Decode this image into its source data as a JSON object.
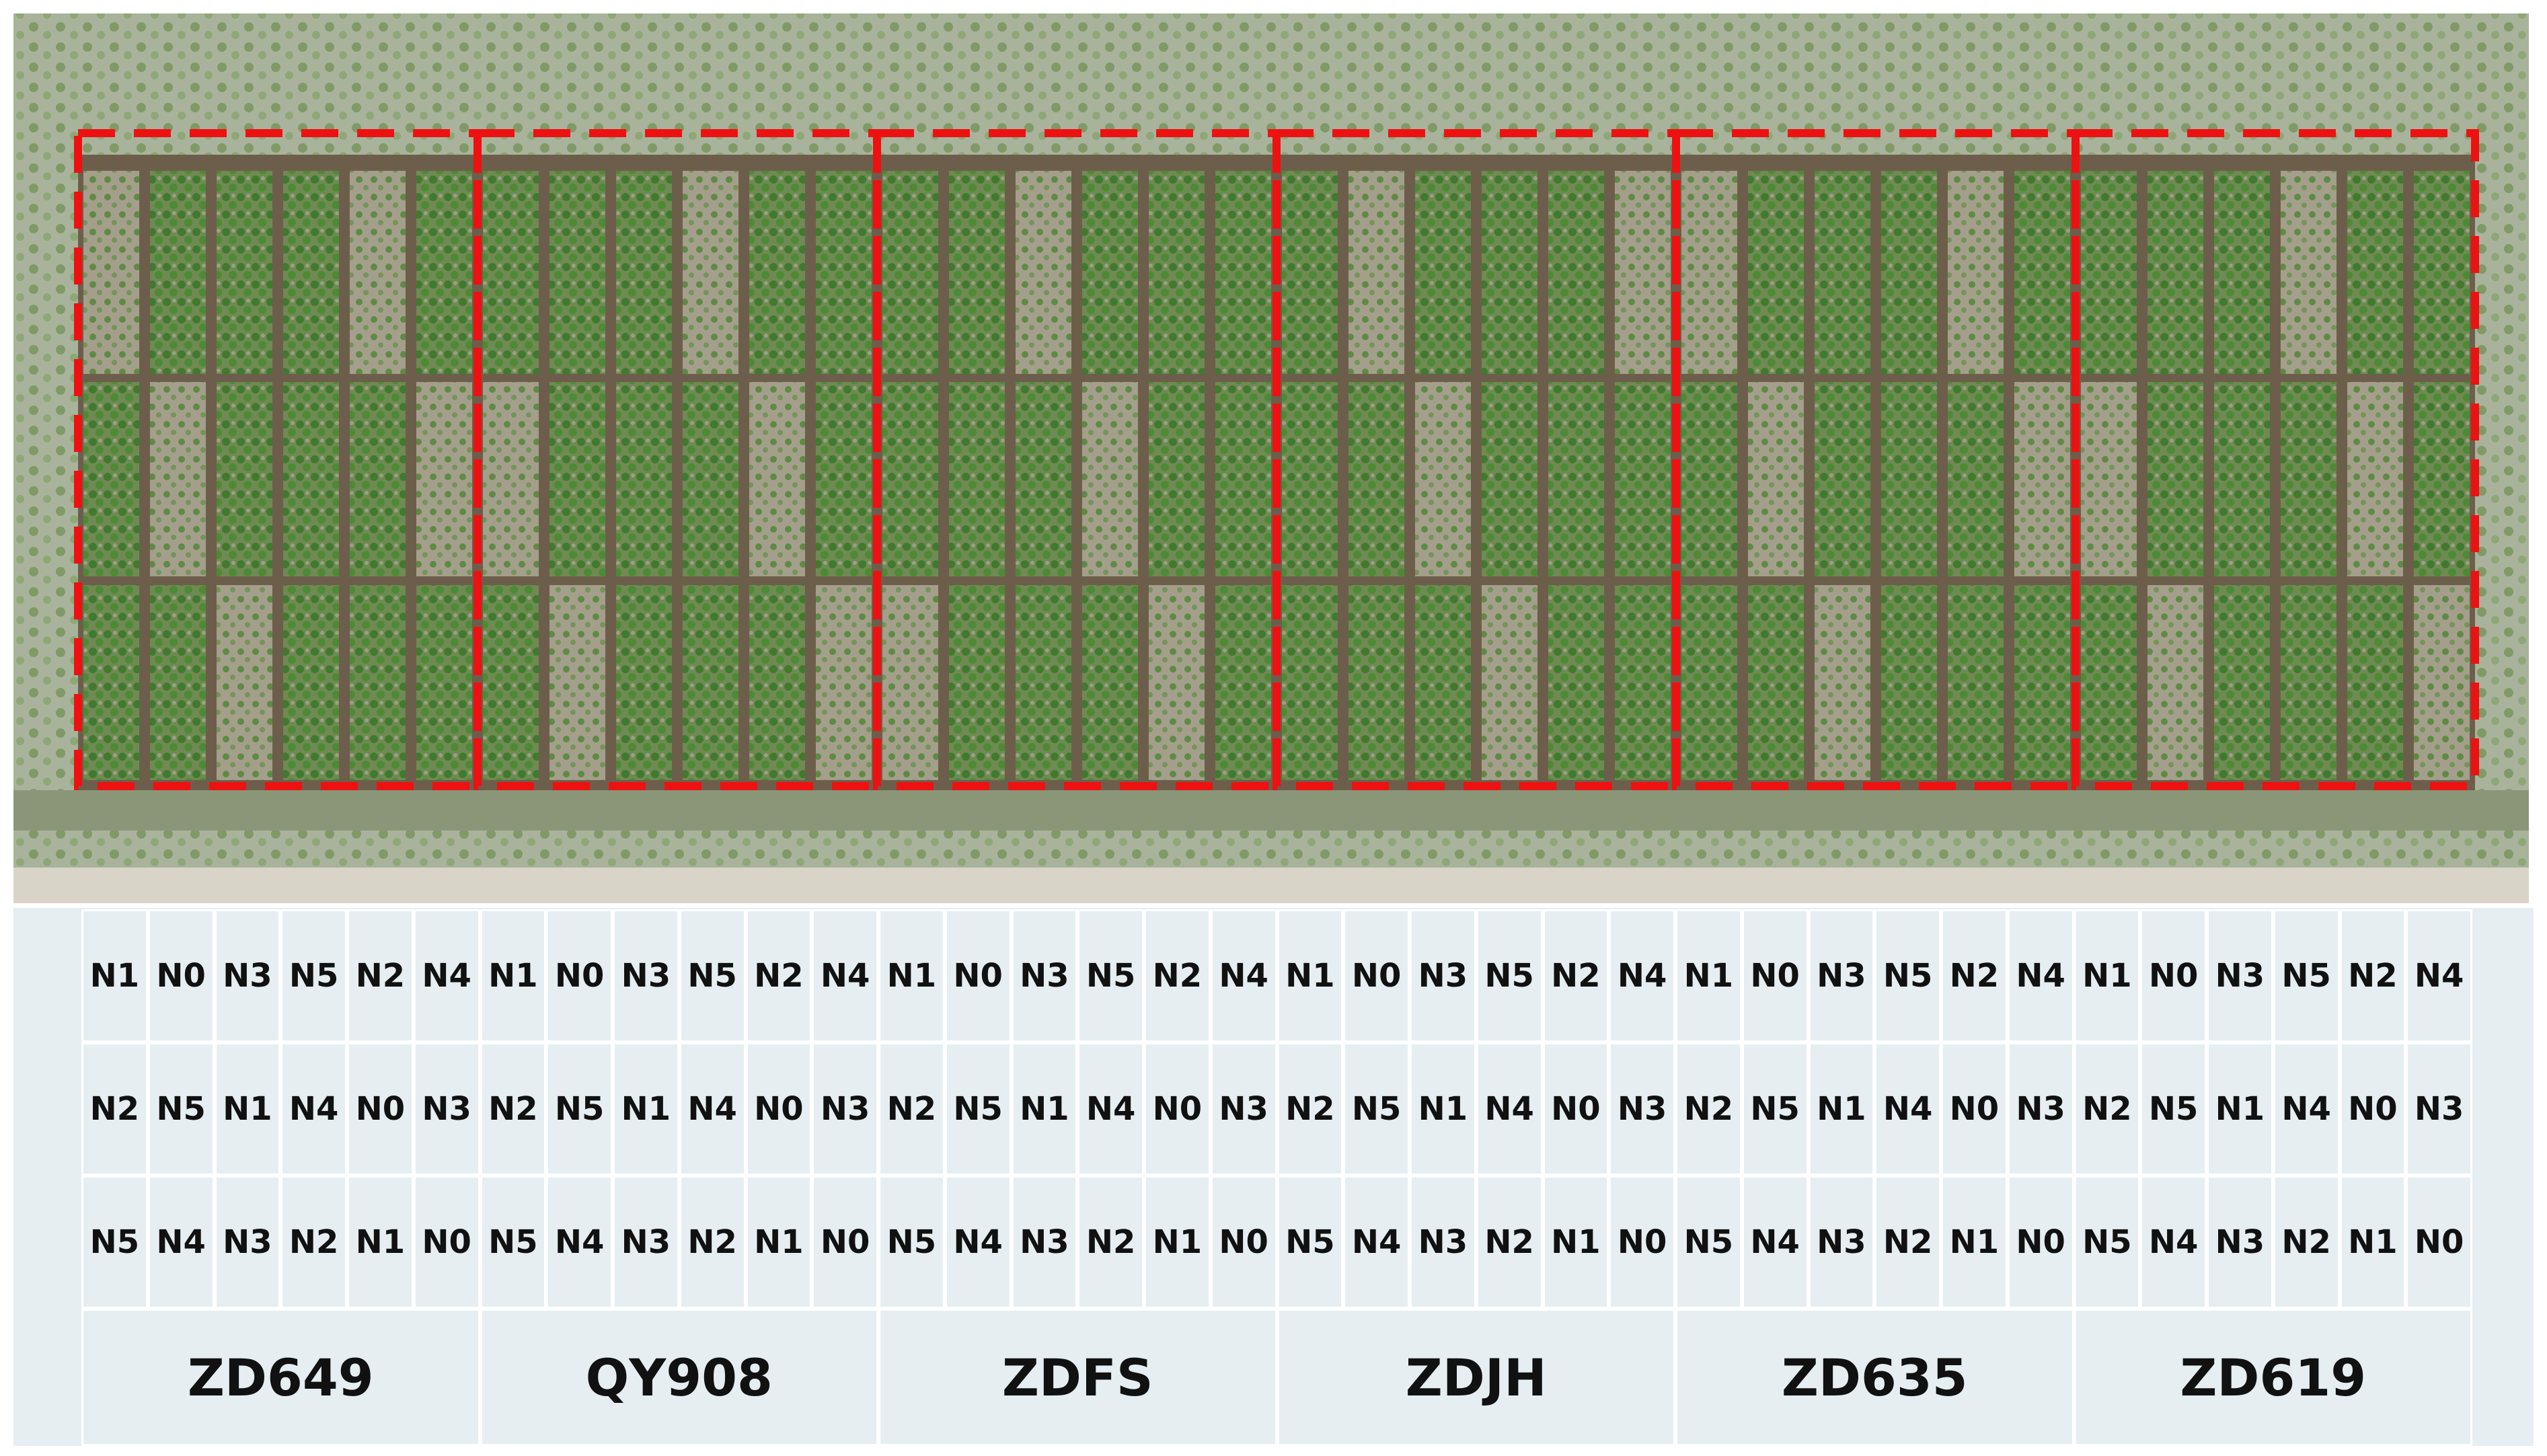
{
  "groups": [
    {
      "name": "ZD649",
      "rows": [
        [
          "N1",
          "N0",
          "N3",
          "N5",
          "N2",
          "N4"
        ],
        [
          "N2",
          "N5",
          "N1",
          "N4",
          "N0",
          "N3"
        ],
        [
          "N5",
          "N4",
          "N3",
          "N2",
          "N1",
          "N0"
        ]
      ]
    },
    {
      "name": "QY908",
      "rows": [
        [
          "N1",
          "N0",
          "N3",
          "N5",
          "N2",
          "N4"
        ],
        [
          "N2",
          "N5",
          "N1",
          "N4",
          "N0",
          "N3"
        ],
        [
          "N5",
          "N4",
          "N3",
          "N2",
          "N1",
          "N0"
        ]
      ]
    },
    {
      "name": "ZDFS",
      "rows": [
        [
          "N1",
          "N0",
          "N3",
          "N5",
          "N2",
          "N4"
        ],
        [
          "N2",
          "N5",
          "N1",
          "N4",
          "N0",
          "N3"
        ],
        [
          "N5",
          "N4",
          "N3",
          "N2",
          "N1",
          "N0"
        ]
      ]
    },
    {
      "name": "ZDJH",
      "rows": [
        [
          "N1",
          "N0",
          "N3",
          "N5",
          "N2",
          "N4"
        ],
        [
          "N2",
          "N5",
          "N1",
          "N4",
          "N0",
          "N3"
        ],
        [
          "N5",
          "N4",
          "N3",
          "N2",
          "N1",
          "N0"
        ]
      ]
    },
    {
      "name": "ZD635",
      "rows": [
        [
          "N1",
          "N0",
          "N3",
          "N5",
          "N2",
          "N4"
        ],
        [
          "N2",
          "N5",
          "N1",
          "N4",
          "N0",
          "N3"
        ],
        [
          "N5",
          "N4",
          "N3",
          "N2",
          "N1",
          "N0"
        ]
      ]
    },
    {
      "name": "ZD619",
      "rows": [
        [
          "N1",
          "N0",
          "N3",
          "N5",
          "N2",
          "N4"
        ],
        [
          "N2",
          "N5",
          "N1",
          "N4",
          "N0",
          "N3"
        ],
        [
          "N5",
          "N4",
          "N3",
          "N2",
          "N1",
          "N0"
        ]
      ]
    }
  ]
}
